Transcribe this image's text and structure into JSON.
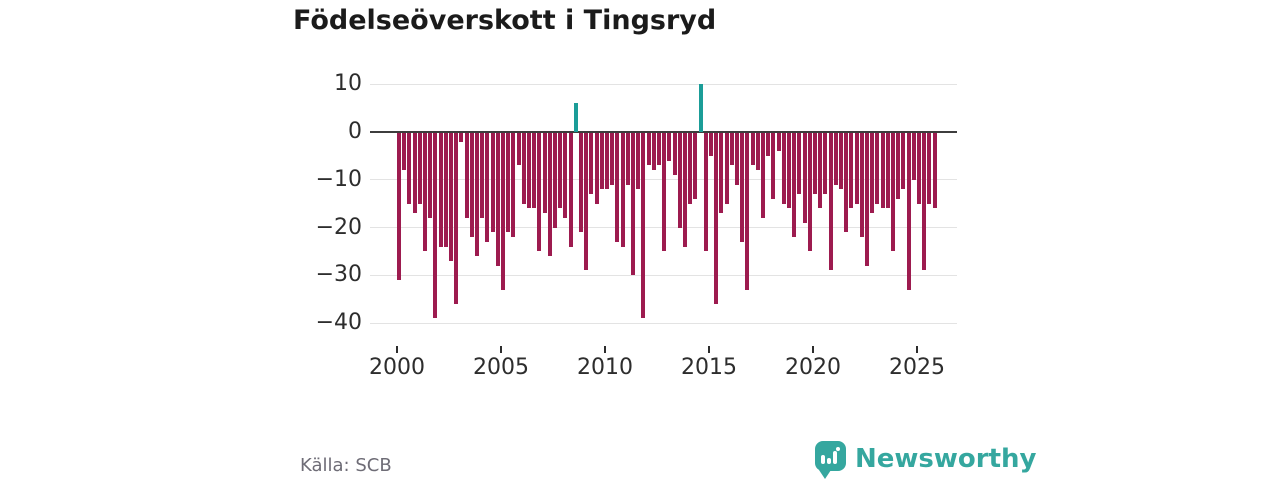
{
  "title": "Födelseöverskott i Tingsryd",
  "source": {
    "label": "Källa: SCB"
  },
  "logo": {
    "text": "Newsworthy",
    "icon": "newsworthy-speech-bubble-barchart-icon"
  },
  "colors": {
    "bar_negative": "#9d1b4f",
    "bar_positive": "#1b9d98",
    "grid": "#e3e3e3",
    "zero_line": "#3d3d3d",
    "title_text": "#1b1b1b",
    "axis_text": "#2d2d2d",
    "source_text": "#6e6c76",
    "logo_teal": "#35a79f"
  },
  "chart_data": {
    "type": "bar",
    "title": "Födelseöverskott i Tingsryd",
    "frequency": "quarterly",
    "start_period": "2000-Q1",
    "end_period": "2025-Q4",
    "grid": true,
    "legend": "none",
    "ylim": [
      -40,
      10
    ],
    "y_ticks": [
      10,
      0,
      -10,
      -20,
      -30,
      -40
    ],
    "y_tick_labels": [
      "10",
      "0",
      "−10",
      "−20",
      "−30",
      "−40"
    ],
    "x_tick_years": [
      2000,
      2005,
      2010,
      2015,
      2020,
      2025
    ],
    "x_tick_labels": [
      "2000",
      "2005",
      "2010",
      "2015",
      "2020",
      "2025"
    ],
    "values": [
      -31,
      -8,
      -15,
      -17,
      -15,
      -25,
      -18,
      -39,
      -24,
      -24,
      -27,
      -36,
      -2,
      -18,
      -22,
      -26,
      -18,
      -23,
      -21,
      -28,
      -33,
      -21,
      -22,
      -7,
      -15,
      -16,
      -16,
      -25,
      -17,
      -26,
      -20,
      -16,
      -18,
      -24,
      6,
      -21,
      -29,
      -13,
      -15,
      -12,
      -12,
      -11,
      -23,
      -24,
      -11,
      -30,
      -12,
      -39,
      -7,
      -8,
      -7,
      -25,
      -6,
      -9,
      -20,
      -24,
      -15,
      -14,
      10,
      -25,
      -5,
      -36,
      -17,
      -15,
      -7,
      -11,
      -23,
      -33,
      -7,
      -8,
      -18,
      -5,
      -14,
      -4,
      -15,
      -16,
      -22,
      -13,
      -19,
      -25,
      -13,
      -16,
      -13,
      -29,
      -11,
      -12,
      -21,
      -16,
      -15,
      -22,
      -28,
      -17,
      -15,
      -16,
      -16,
      -25,
      -14,
      -12,
      -33,
      -10,
      -15,
      -29,
      -15,
      -16
    ]
  }
}
